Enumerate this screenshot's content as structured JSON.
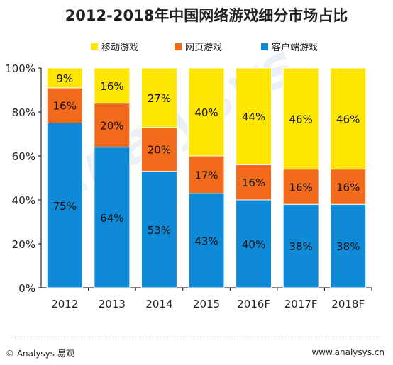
{
  "chart_data": {
    "type": "bar",
    "stacked": true,
    "title": "2012-2018年中国网络游戏细分市场占比",
    "categories": [
      "2012",
      "2013",
      "2014",
      "2015",
      "2016F",
      "2017F",
      "2018F"
    ],
    "series": [
      {
        "name": "客户端游戏",
        "color": "#0f8ad7",
        "values": [
          75,
          64,
          53,
          43,
          40,
          38,
          38
        ]
      },
      {
        "name": "网页游戏",
        "color": "#f26b1d",
        "values": [
          16,
          20,
          20,
          17,
          16,
          16,
          16
        ]
      },
      {
        "name": "移动游戏",
        "color": "#ffe600",
        "values": [
          9,
          16,
          27,
          40,
          44,
          46,
          46
        ]
      }
    ],
    "legend_order": [
      "移动游戏",
      "网页游戏",
      "客户端游戏"
    ],
    "legend_position": "top",
    "yticks": [
      "0%",
      "20%",
      "40%",
      "60%",
      "80%",
      "100%"
    ],
    "ylim": [
      0,
      100
    ],
    "grid": false
  },
  "watermark": "Analysys",
  "footer": {
    "copyright": "© Analysys 易观",
    "url": "www.analysys.cn"
  }
}
